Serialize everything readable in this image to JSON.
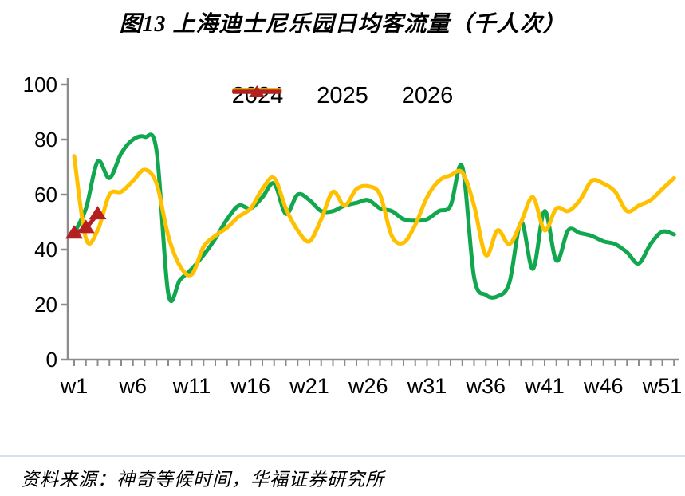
{
  "title": "图13 上海迪士尼乐园日均客流量（千人次）",
  "source": "资料来源：神奇等候时间，华福证券研究所",
  "colors": {
    "green": "#10A74F",
    "yellow": "#FFC000",
    "red": "#B42020",
    "axis": "#8C8C8C",
    "tick_label": "#000000",
    "divider": "#D9E0EB"
  },
  "legend": {
    "items": [
      "2024",
      "2025",
      "2026"
    ],
    "position": "top-center"
  },
  "chart_data": {
    "type": "line",
    "title": "图13 上海迪士尼乐园日均客流量（千人次）",
    "xlabel": "",
    "ylabel": "",
    "x_unit": "week",
    "xlim": [
      1,
      52
    ],
    "ylim": [
      0,
      100
    ],
    "yticks": [
      0,
      20,
      40,
      60,
      80,
      100
    ],
    "xtick_weeks": [
      1,
      6,
      11,
      16,
      21,
      26,
      31,
      36,
      41,
      46,
      51
    ],
    "xtick_labels": [
      "w1",
      "w6",
      "w11",
      "w16",
      "w21",
      "w26",
      "w31",
      "w36",
      "w41",
      "w46",
      "w51"
    ],
    "minor_xticks_every_week": true,
    "grid": false,
    "smooth": true,
    "legend_position": "top-center",
    "series": [
      {
        "name": "2024",
        "color": "#10A74F",
        "style": "smooth-line",
        "marker": "none",
        "weeks": [
          1,
          2,
          3,
          4,
          5,
          6,
          7,
          8,
          9,
          10,
          11,
          12,
          13,
          14,
          15,
          16,
          17,
          18,
          19,
          20,
          21,
          22,
          23,
          24,
          25,
          26,
          27,
          28,
          29,
          30,
          31,
          32,
          33,
          34,
          35,
          36,
          37,
          38,
          39,
          40,
          41,
          42,
          43,
          44,
          45,
          46,
          47,
          48,
          49,
          50,
          51,
          52
        ],
        "values": [
          46,
          55,
          72,
          66,
          75,
          80,
          81,
          76,
          24,
          29,
          33,
          38,
          44,
          51,
          56,
          55,
          59,
          64,
          53,
          60,
          58,
          54,
          54,
          56,
          57,
          58,
          55,
          54,
          51,
          50.5,
          51,
          54,
          56,
          70,
          30,
          23.5,
          23,
          28,
          50,
          33,
          54,
          36,
          47,
          46,
          45,
          43,
          42,
          39,
          35,
          42,
          46.5,
          45.5
        ]
      },
      {
        "name": "2025",
        "color": "#FFC000",
        "style": "smooth-line",
        "marker": "none",
        "weeks": [
          1,
          2,
          3,
          4,
          5,
          6,
          7,
          8,
          9,
          10,
          11,
          12,
          13,
          14,
          15,
          16,
          17,
          18,
          19,
          20,
          21,
          22,
          23,
          24,
          25,
          26,
          27,
          28,
          29,
          30,
          31,
          32,
          33,
          34,
          35,
          36,
          37,
          38,
          39,
          40,
          41,
          42,
          43,
          44,
          45,
          46,
          47,
          48,
          49,
          50,
          51,
          52
        ],
        "values": [
          74,
          44,
          47,
          60,
          61,
          65,
          69,
          64,
          45,
          34,
          31,
          41,
          45,
          48,
          52,
          55,
          62,
          66,
          55,
          47,
          43,
          51,
          61,
          56,
          62,
          63,
          60,
          45,
          42.5,
          49,
          59,
          65,
          67,
          68,
          56,
          38,
          47,
          42,
          50,
          59,
          47,
          55,
          54,
          58,
          65,
          64,
          61,
          54,
          56,
          58,
          62,
          66
        ]
      },
      {
        "name": "2026",
        "color": "#B42020",
        "style": "line-with-triangle-markers",
        "marker": "triangle-up",
        "weeks": [
          1,
          2,
          3
        ],
        "values": [
          46,
          48,
          53
        ]
      }
    ]
  }
}
